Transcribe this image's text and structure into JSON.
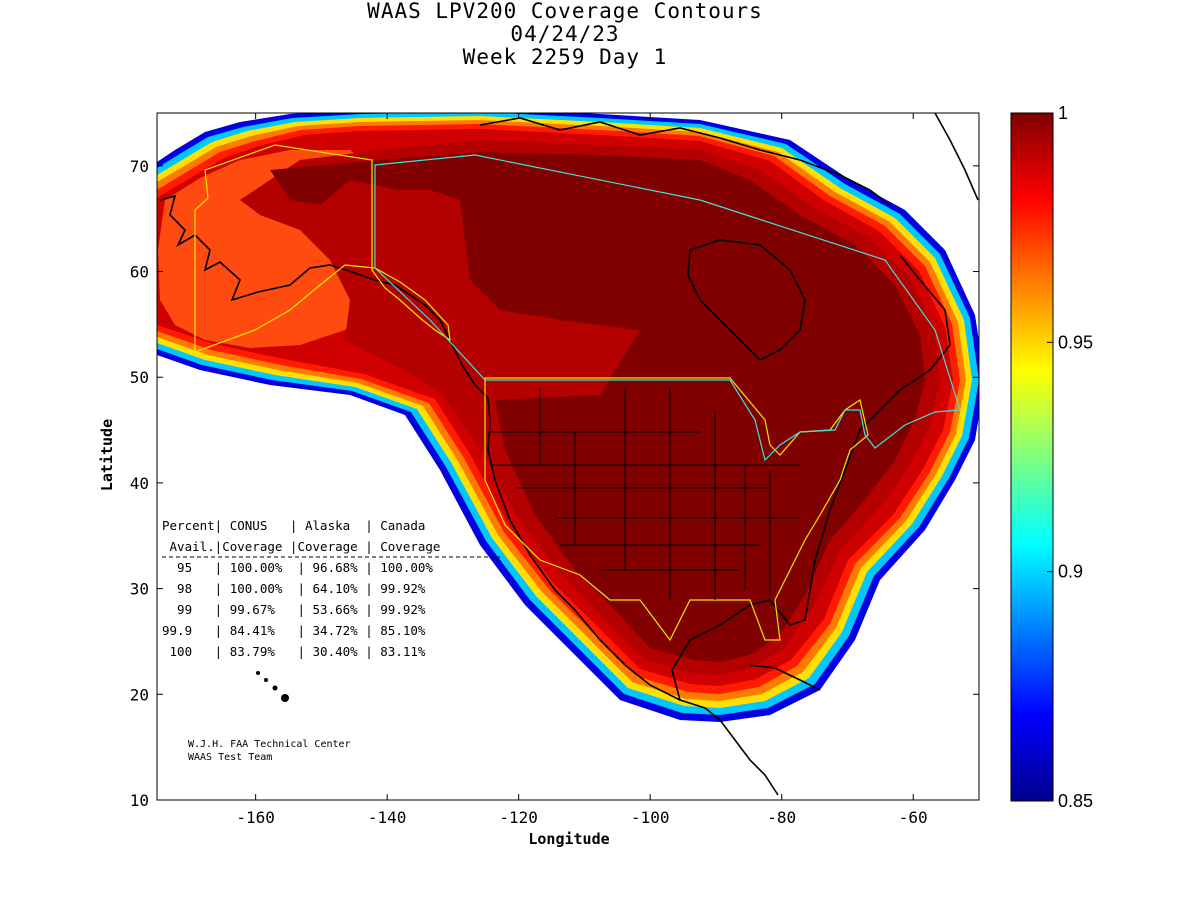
{
  "title": {
    "line1": "WAAS LPV200 Coverage Contours",
    "line2": "04/24/23",
    "line3": "Week 2259 Day 1"
  },
  "axes": {
    "xlabel": "Longitude",
    "ylabel": "Latitude",
    "xlim": [
      -175,
      -50
    ],
    "ylim": [
      10,
      75
    ],
    "xticks": [
      -160,
      -140,
      -120,
      -100,
      -80,
      -60
    ],
    "yticks": [
      10,
      20,
      30,
      40,
      50,
      60,
      70
    ]
  },
  "colorbar": {
    "min": 0.85,
    "max": 1,
    "ticks": [
      "1",
      "0.95",
      "0.9",
      "0.85"
    ],
    "tick_values": [
      1,
      0.95,
      0.9,
      0.85
    ],
    "colormap": [
      "#00008f",
      "#0000ff",
      "#0080ff",
      "#00ffff",
      "#80ff80",
      "#ffff00",
      "#ff8000",
      "#ff0000",
      "#800000"
    ]
  },
  "table": {
    "header1": "Percent| CONUS   | Alaska  | Canada",
    "header2": " Avail.|Coverage |Coverage | Coverage",
    "rows": [
      "  95   | 100.00%  | 96.68% | 100.00%",
      "  98   | 100.00%  | 64.10% | 99.92%",
      "  99   | 99.67%   | 53.66% | 99.92%",
      "99.9   | 84.41%   | 34.72% | 85.10%",
      " 100   | 83.79%   | 30.40% | 83.11%"
    ]
  },
  "credit": {
    "line1": "W.J.H. FAA Technical Center",
    "line2": "WAAS Test Team"
  },
  "colors": {
    "deep": "#800000",
    "red": "#b50000",
    "orange": "#ff4a10",
    "coastline": "#000000",
    "border_yellow": "#e8e800",
    "border_cyan": "#40e0e0"
  }
}
